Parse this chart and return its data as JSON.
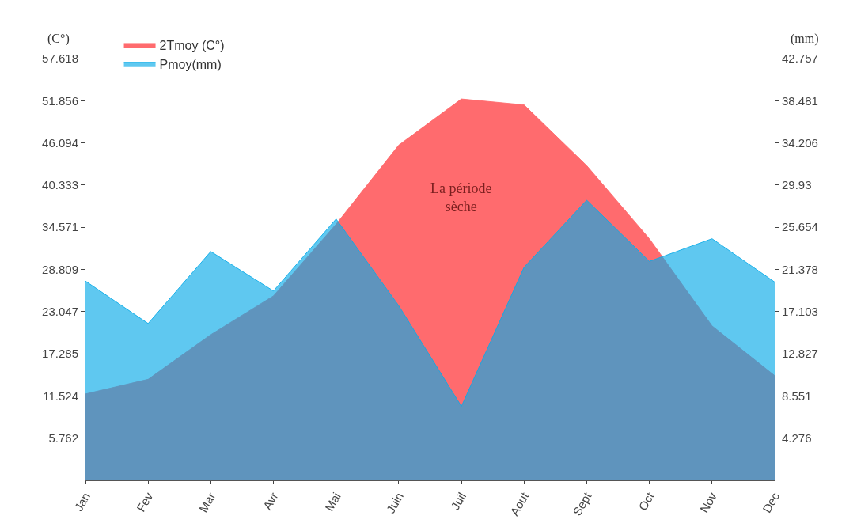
{
  "chart_data": {
    "type": "area",
    "ylabel": "(C°)",
    "y2label": "(mm)",
    "categories": [
      "Jan",
      "Fev",
      "Mar",
      "Avr",
      "Mai",
      "Juin",
      "Juil",
      "Aout",
      "Sept",
      "Oct",
      "Nov",
      "Dec"
    ],
    "series": [
      {
        "name": "2Tmoy (C°)",
        "color": "#ff6b6e",
        "values": [
          11.8,
          13.8,
          19.9,
          25.2,
          35,
          45.8,
          52.1,
          51.3,
          43,
          33,
          21.1,
          14.3
        ]
      },
      {
        "name": "Pmoy(mm)",
        "color": "#09abe8",
        "axis": "y2",
        "values": [
          20.2,
          15.9,
          23.2,
          19.2,
          26.5,
          17.7,
          7.5,
          21.6,
          28.4,
          22.2,
          24.5,
          20.1
        ]
      }
    ],
    "ylim": [
      0,
      61.3
    ],
    "yticks": [
      5.762,
      11.524,
      17.285,
      23.047,
      28.809,
      34.571,
      40.333,
      46.094,
      51.856,
      57.618
    ],
    "y2lim": [
      0,
      45.49
    ],
    "y2ticks": [
      4.276,
      8.551,
      12.827,
      17.103,
      21.378,
      25.654,
      29.93,
      34.206,
      38.481,
      42.757
    ],
    "annotations": [
      "La période sèche"
    ],
    "legend": "top left"
  }
}
